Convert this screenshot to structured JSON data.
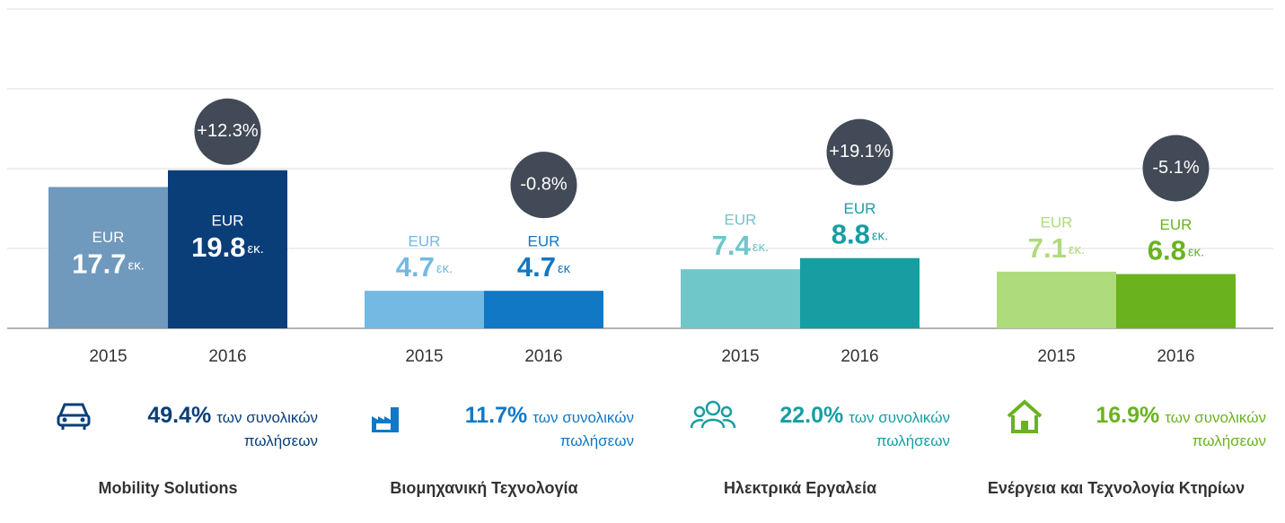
{
  "chart_data": {
    "type": "grouped_bar",
    "currency": "EUR",
    "ylim": [
      0,
      40
    ],
    "yticks": [
      0,
      10,
      20,
      30,
      40
    ],
    "groups": [
      {
        "name": "Mobility Solutions",
        "categories": [
          "2015",
          "2016"
        ],
        "values": [
          17.7,
          19.8
        ],
        "unit_labels": [
          "εκ.",
          "εκ."
        ],
        "colors": [
          "#6f99bd",
          "#0a3e79"
        ],
        "change_label": "+12.3%",
        "share_label": "49.4%",
        "share_text": [
          "των συνολικών",
          "πωλήσεων"
        ],
        "color": "#0a3e79"
      },
      {
        "name": "Βιομηχανική Τεχνολογία",
        "categories": [
          "2015",
          "2016"
        ],
        "values": [
          4.7,
          4.7
        ],
        "unit_labels": [
          "εκ.",
          "εκ"
        ],
        "colors": [
          "#73b9e3",
          "#1178c5"
        ],
        "change_label": "-0.8%",
        "share_label": "11.7%",
        "share_text": [
          "των συνολικών",
          "πωλήσεων"
        ],
        "color": "#1178c5"
      },
      {
        "name": "Ηλεκτρικά Εργαλεία",
        "categories": [
          "2015",
          "2016"
        ],
        "values": [
          7.4,
          8.8
        ],
        "unit_labels": [
          "εκ.",
          "εκ."
        ],
        "colors": [
          "#6fc7ca",
          "#169ea3"
        ],
        "change_label": "+19.1%",
        "share_label": "22.0%",
        "share_text": [
          "των συνολικών",
          "πωλήσεων"
        ],
        "color": "#169ea3"
      },
      {
        "name": "Ενέργεια και Τεχνολογία Κτηρίων",
        "categories": [
          "2015",
          "2016"
        ],
        "values": [
          7.1,
          6.8
        ],
        "unit_labels": [
          "εκ.",
          "εκ."
        ],
        "colors": [
          "#aedb7c",
          "#6ab31f"
        ],
        "change_label": "-5.1%",
        "share_label": "16.9%",
        "share_text": [
          "των συνολικών",
          "πωλήσεων"
        ],
        "color": "#6ab31f"
      }
    ]
  }
}
